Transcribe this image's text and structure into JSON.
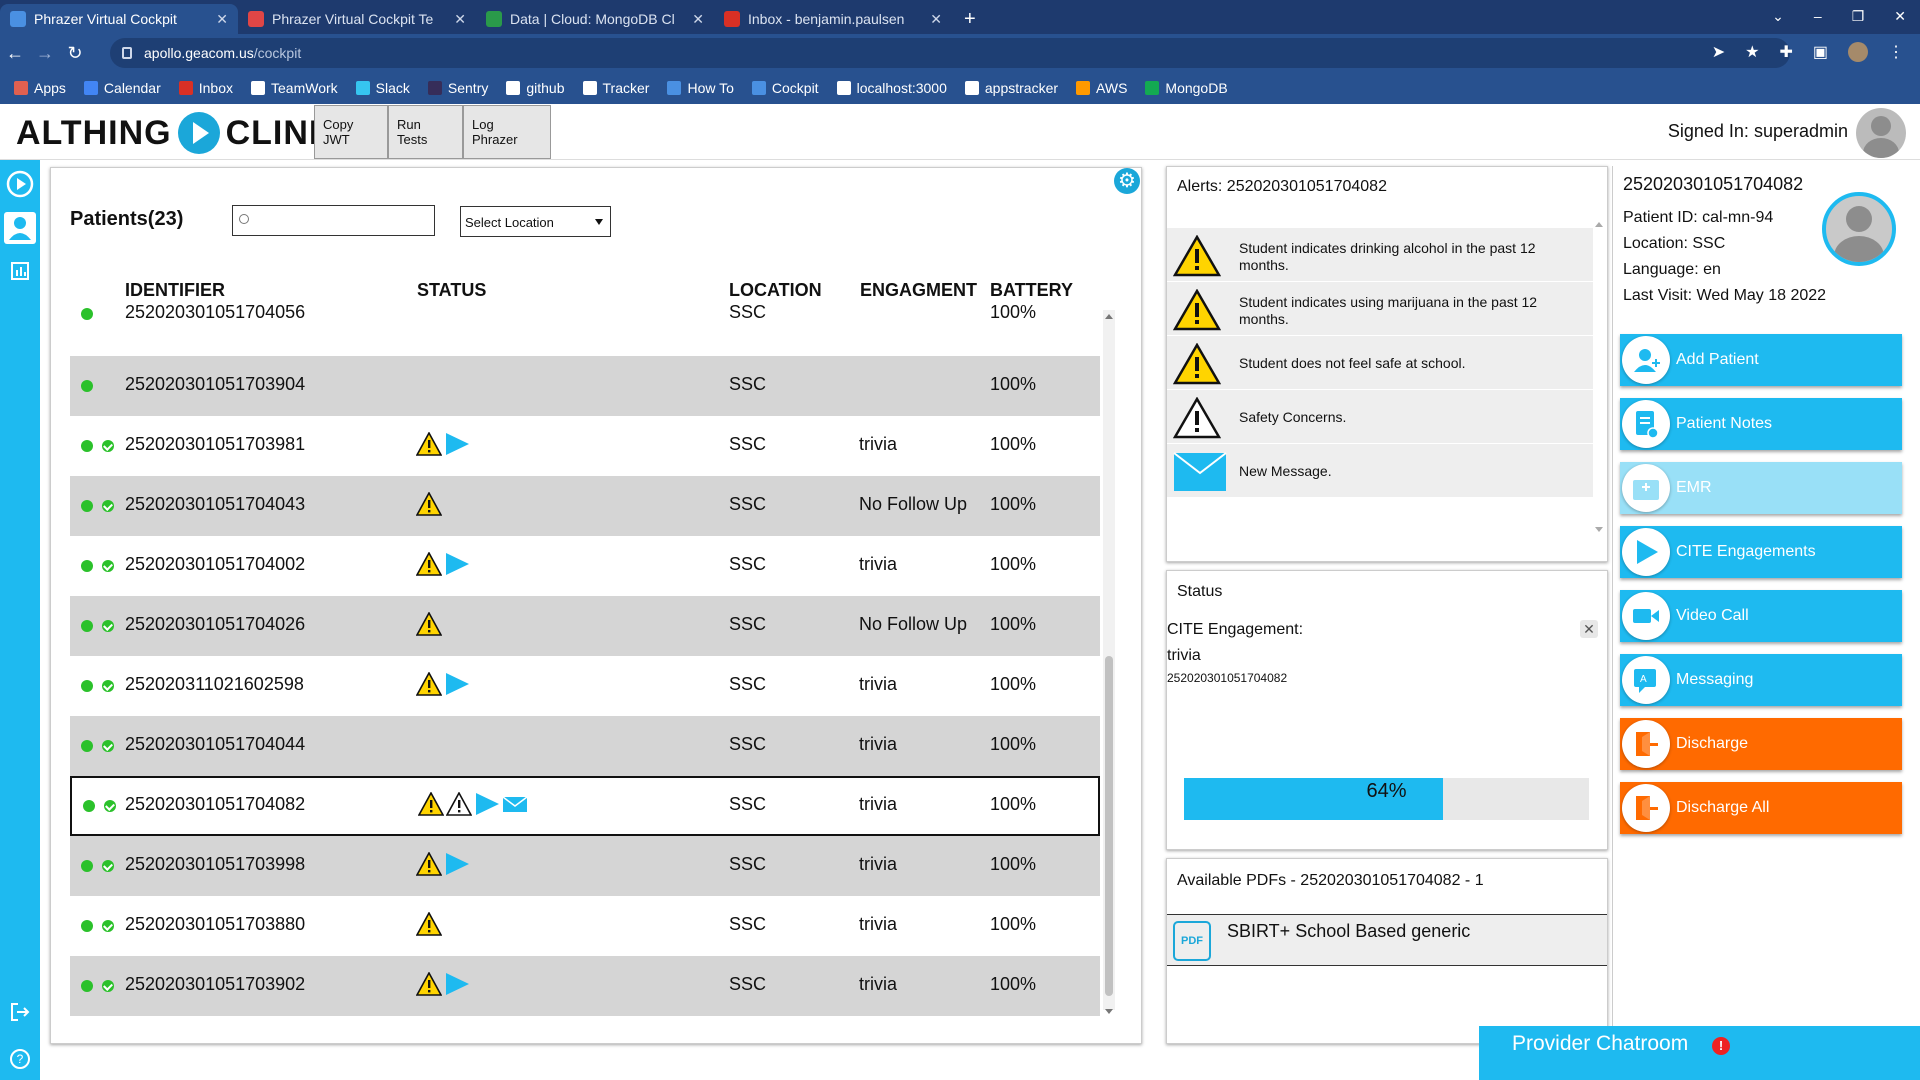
{
  "browser": {
    "tabs": [
      {
        "title": "Phrazer Virtual Cockpit",
        "active": true,
        "favicon_color": "#4a90e2"
      },
      {
        "title": "Phrazer Virtual Cockpit Te",
        "active": false,
        "favicon_color": "#e04646"
      },
      {
        "title": "Data | Cloud: MongoDB Cl",
        "active": false,
        "favicon_color": "#2a9a4a"
      },
      {
        "title": "Inbox - benjamin.paulsen",
        "active": false,
        "favicon_color": "#d93025"
      }
    ],
    "url_host": "apollo.geacom.us",
    "url_path": "/cockpit",
    "bookmarks": [
      {
        "label": "Apps",
        "color": "#e06050"
      },
      {
        "label": "Calendar",
        "color": "#4285f4"
      },
      {
        "label": "Inbox",
        "color": "#d93025"
      },
      {
        "label": "TeamWork",
        "color": "#ffffff"
      },
      {
        "label": "Slack",
        "color": "#36c5f0"
      },
      {
        "label": "Sentry",
        "color": "#362d59"
      },
      {
        "label": "github",
        "color": "#ffffff"
      },
      {
        "label": "Tracker",
        "color": "#ffffff"
      },
      {
        "label": "How To",
        "color": "#4a90e2"
      },
      {
        "label": "Cockpit",
        "color": "#4a90e2"
      },
      {
        "label": "localhost:3000",
        "color": "#ffffff"
      },
      {
        "label": "appstracker",
        "color": "#ffffff"
      },
      {
        "label": "AWS",
        "color": "#ff9900"
      },
      {
        "label": "MongoDB",
        "color": "#13aa52"
      }
    ]
  },
  "header": {
    "logo_left": "ALTHING",
    "logo_right": "CLINIC",
    "buttons": [
      "Copy JWT",
      "Run Tests",
      "Log Phrazer"
    ],
    "signed_in": "Signed In: superadmin"
  },
  "patients": {
    "title": "Patients(23)",
    "location_select": "Select Location",
    "columns": {
      "identifier": "IDENTIFIER",
      "status": "STATUS",
      "location": "LOCATION",
      "engagement": "ENGAGMENT",
      "battery": "BATTERY"
    },
    "rows": [
      {
        "id": "252020301051704056",
        "location": "SSC",
        "engagement": "",
        "battery": "100%",
        "check": false,
        "icons": [],
        "style": "white"
      },
      {
        "id": "252020301051703904",
        "location": "SSC",
        "engagement": "",
        "battery": "100%",
        "check": false,
        "icons": [],
        "style": "grey"
      },
      {
        "id": "252020301051703981",
        "location": "SSC",
        "engagement": "trivia",
        "battery": "100%",
        "check": true,
        "icons": [
          "warning",
          "play"
        ],
        "style": "white"
      },
      {
        "id": "252020301051704043",
        "location": "SSC",
        "engagement": "No Follow Up",
        "battery": "100%",
        "check": true,
        "icons": [
          "warning"
        ],
        "style": "grey"
      },
      {
        "id": "252020301051704002",
        "location": "SSC",
        "engagement": "trivia",
        "battery": "100%",
        "check": true,
        "icons": [
          "warning",
          "play"
        ],
        "style": "white"
      },
      {
        "id": "252020301051704026",
        "location": "SSC",
        "engagement": "No Follow Up",
        "battery": "100%",
        "check": true,
        "icons": [
          "warning"
        ],
        "style": "grey"
      },
      {
        "id": "252020311021602598",
        "location": "SSC",
        "engagement": "trivia",
        "battery": "100%",
        "check": true,
        "icons": [
          "warning",
          "play"
        ],
        "style": "white"
      },
      {
        "id": "252020301051704044",
        "location": "SSC",
        "engagement": "trivia",
        "battery": "100%",
        "check": true,
        "icons": [],
        "style": "grey"
      },
      {
        "id": "252020301051704082",
        "location": "SSC",
        "engagement": "trivia",
        "battery": "100%",
        "check": true,
        "icons": [
          "warning",
          "warning-outline",
          "play",
          "envelope"
        ],
        "style": "selected"
      },
      {
        "id": "252020301051703998",
        "location": "SSC",
        "engagement": "trivia",
        "battery": "100%",
        "check": true,
        "icons": [
          "warning",
          "play"
        ],
        "style": "grey"
      },
      {
        "id": "252020301051703880",
        "location": "SSC",
        "engagement": "trivia",
        "battery": "100%",
        "check": true,
        "icons": [
          "warning"
        ],
        "style": "white"
      },
      {
        "id": "252020301051703902",
        "location": "SSC",
        "engagement": "trivia",
        "battery": "100%",
        "check": true,
        "icons": [
          "warning",
          "play"
        ],
        "style": "grey"
      }
    ]
  },
  "alerts": {
    "title": "Alerts: 252020301051704082",
    "items": [
      {
        "text": "Student indicates drinking alcohol in the past 12 months.",
        "icon": "warning"
      },
      {
        "text": "Student indicates using marijuana in the past 12 months.",
        "icon": "warning"
      },
      {
        "text": "Student does not feel safe at school.",
        "icon": "warning"
      },
      {
        "text": "Safety Concerns.",
        "icon": "warning-outline"
      },
      {
        "text": "New Message.",
        "icon": "envelope"
      }
    ]
  },
  "status": {
    "title": "Status",
    "cite_label": "CITE Engagement:",
    "engagement": "trivia",
    "patient_id": "252020301051704082",
    "progress_label": "64%",
    "progress": 0.64
  },
  "pdfs": {
    "title": "Available PDFs - 252020301051704082 - 1",
    "items": [
      "SBIRT+ School Based generic"
    ]
  },
  "patient_detail": {
    "identifier": "252020301051704082",
    "patient_id": "Patient ID: cal-mn-94",
    "location": "Location: SSC",
    "language": "Language: en",
    "last_visit": "Last Visit: Wed May 18 2022"
  },
  "actions": [
    {
      "label": "Add Patient",
      "color": "blue",
      "icon": "add-user-icon"
    },
    {
      "label": "Patient Notes",
      "color": "blue",
      "icon": "notes-icon"
    },
    {
      "label": "EMR",
      "color": "lblue",
      "icon": "emr-icon"
    },
    {
      "label": "CITE Engagements",
      "color": "blue",
      "icon": "play-icon"
    },
    {
      "label": "Video Call",
      "color": "blue",
      "icon": "video-icon"
    },
    {
      "label": "Messaging",
      "color": "blue",
      "icon": "messaging-icon"
    },
    {
      "label": "Discharge",
      "color": "orange",
      "icon": "discharge-icon"
    },
    {
      "label": "Discharge All",
      "color": "orange",
      "icon": "discharge-icon"
    }
  ],
  "chatroom": {
    "label": "Provider Chatroom",
    "badge": "!"
  }
}
